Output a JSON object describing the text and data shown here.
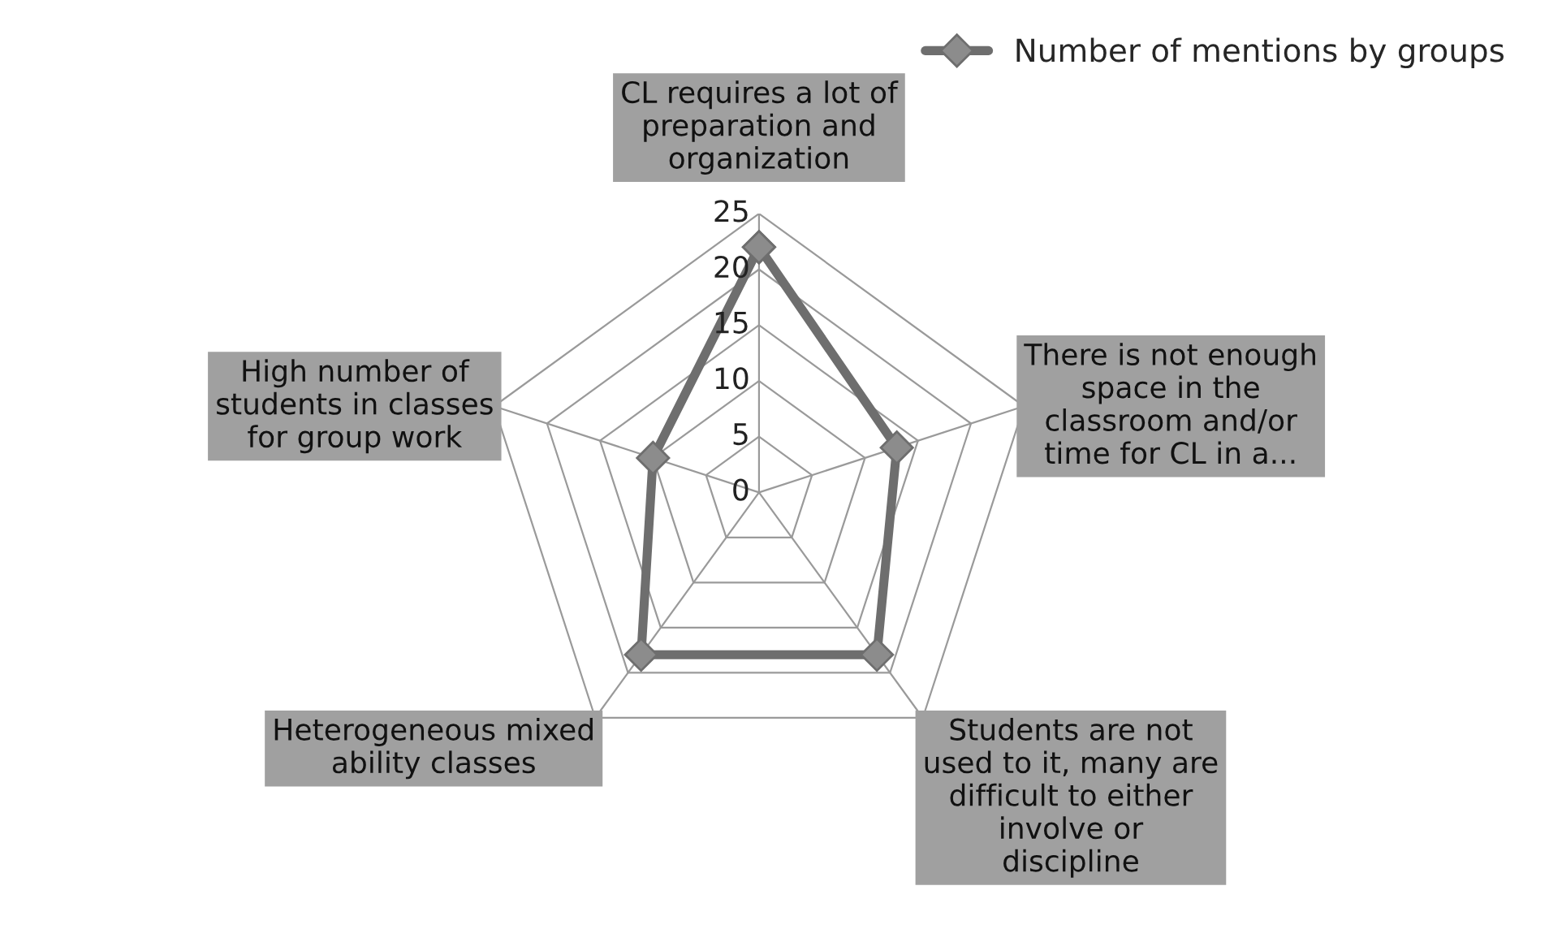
{
  "chart_data": {
    "type": "radar",
    "categories": [
      "CL requires a lot of preparation and organization",
      "There is not enough space in the classroom and/or time for CL in a...",
      "Students are not used to it, many are difficult to either involve or discipline",
      "Heterogeneous mixed ability classes",
      "High number of students in classes for group work"
    ],
    "series": [
      {
        "name": "Number of mentions by groups",
        "color": "#6e6e6e",
        "values": [
          22,
          13,
          18,
          18,
          10
        ]
      }
    ],
    "ylim": [
      0,
      25
    ],
    "yticks": [
      0,
      5,
      10,
      15,
      20,
      25
    ],
    "grid": true,
    "legend": "top right",
    "marker": "diamond",
    "line_style": "solid"
  }
}
